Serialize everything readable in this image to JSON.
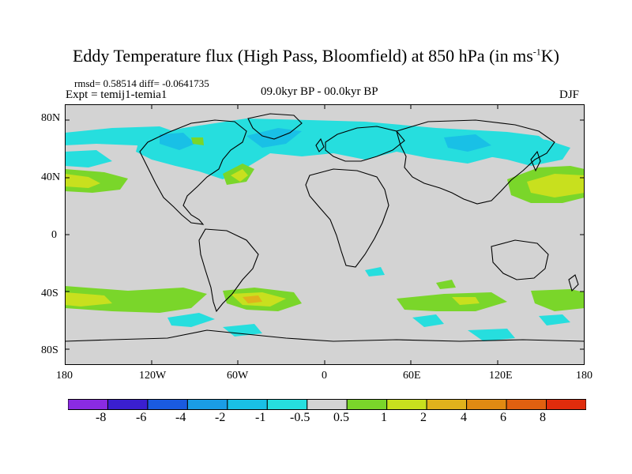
{
  "title_main": "Eddy Temperature flux (High Pass, Bloomfield) at 850 hPa (in ms",
  "title_sup": "-1",
  "title_end": "K)",
  "stats_text": "rmsd= 0.58514 diff= -0.0641735",
  "experiment": "Expt = temij1-temia1",
  "period": "09.0kyr BP - 00.0kyr BP",
  "season": "DJF",
  "lat_labels": [
    "80N",
    "40N",
    "0",
    "40S",
    "80S"
  ],
  "lon_labels": [
    "180",
    "120W",
    "60W",
    "0",
    "60E",
    "120E",
    "180"
  ],
  "colorbar": {
    "labels": [
      "-8",
      "-6",
      "-4",
      "-2",
      "-1",
      "-0.5",
      "0.5",
      "1",
      "2",
      "4",
      "6",
      "8"
    ],
    "colors": [
      "#8a2be2",
      "#3a1fd0",
      "#1a5be0",
      "#1a9de6",
      "#19c0e6",
      "#26dede",
      "#d3d3d3",
      "#7ad62a",
      "#c8e01e",
      "#e0b21c",
      "#e08a12",
      "#e06010",
      "#e02c0c"
    ]
  },
  "background_color": "#d3d3d3"
}
